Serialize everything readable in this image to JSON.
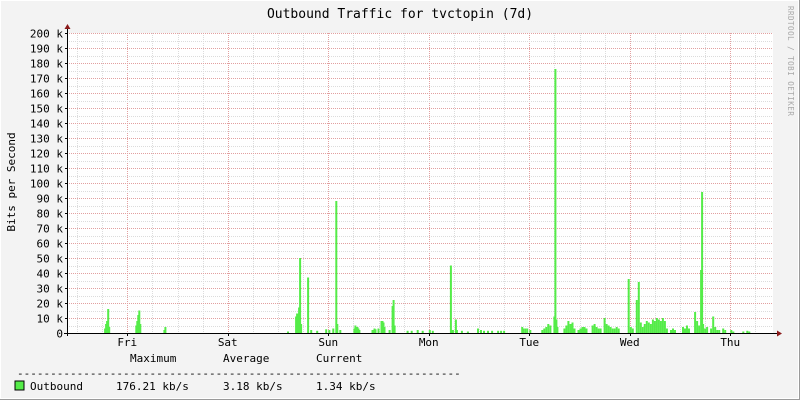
{
  "chart_data": {
    "type": "area",
    "title": "Outbound Traffic for tvctopin (7d)",
    "ylabel": "Bits per Second",
    "watermark": "RRDTOOL / TOBI OETIKER",
    "ylim": [
      0,
      200000
    ],
    "yticks": [
      {
        "v": 0,
        "label": "0"
      },
      {
        "v": 10000,
        "label": "10 k"
      },
      {
        "v": 20000,
        "label": "20 k"
      },
      {
        "v": 30000,
        "label": "30 k"
      },
      {
        "v": 40000,
        "label": "40 k"
      },
      {
        "v": 50000,
        "label": "50 k"
      },
      {
        "v": 60000,
        "label": "60 k"
      },
      {
        "v": 70000,
        "label": "70 k"
      },
      {
        "v": 80000,
        "label": "80 k"
      },
      {
        "v": 90000,
        "label": "90 k"
      },
      {
        "v": 100000,
        "label": "100 k"
      },
      {
        "v": 110000,
        "label": "110 k"
      },
      {
        "v": 120000,
        "label": "120 k"
      },
      {
        "v": 130000,
        "label": "130 k"
      },
      {
        "v": 140000,
        "label": "140 k"
      },
      {
        "v": 150000,
        "label": "150 k"
      },
      {
        "v": 160000,
        "label": "160 k"
      },
      {
        "v": 170000,
        "label": "170 k"
      },
      {
        "v": 180000,
        "label": "180 k"
      },
      {
        "v": 190000,
        "label": "190 k"
      },
      {
        "v": 200000,
        "label": "200 k"
      }
    ],
    "day_labels": [
      "Fri",
      "Sat",
      "Sun",
      "Mon",
      "Tue",
      "Wed",
      "Thu"
    ],
    "xlim_days": [
      0,
      7.0
    ],
    "series": [
      {
        "name": "Outbound",
        "color": "#54ec48",
        "points": [
          [
            0.27,
            3000
          ],
          [
            0.28,
            6000
          ],
          [
            0.29,
            8000
          ],
          [
            0.3,
            16000
          ],
          [
            0.31,
            4000
          ],
          [
            0.58,
            5000
          ],
          [
            0.59,
            8000
          ],
          [
            0.6,
            12000
          ],
          [
            0.61,
            15000
          ],
          [
            0.62,
            6000
          ],
          [
            0.86,
            2000
          ],
          [
            0.87,
            4000
          ],
          [
            2.09,
            1000
          ],
          [
            2.17,
            11000
          ],
          [
            2.18,
            13000
          ],
          [
            2.19,
            13000
          ],
          [
            2.2,
            17000
          ],
          [
            2.21,
            50000
          ],
          [
            2.22,
            6000
          ],
          [
            2.29,
            37000
          ],
          [
            2.32,
            2000
          ],
          [
            2.38,
            1500
          ],
          [
            2.47,
            2500
          ],
          [
            2.5,
            2000
          ],
          [
            2.54,
            3000
          ],
          [
            2.57,
            88000
          ],
          [
            2.58,
            6000
          ],
          [
            2.61,
            2000
          ],
          [
            2.75,
            3000
          ],
          [
            2.76,
            5000
          ],
          [
            2.77,
            4000
          ],
          [
            2.78,
            4000
          ],
          [
            2.79,
            3000
          ],
          [
            2.8,
            2000
          ],
          [
            2.93,
            2000
          ],
          [
            2.95,
            3000
          ],
          [
            2.96,
            2500
          ],
          [
            2.99,
            3000
          ],
          [
            3.02,
            8000
          ],
          [
            3.03,
            8000
          ],
          [
            3.04,
            7000
          ],
          [
            3.05,
            4000
          ],
          [
            3.1,
            2000
          ],
          [
            3.13,
            18000
          ],
          [
            3.14,
            22000
          ],
          [
            3.15,
            5000
          ],
          [
            3.28,
            1500
          ],
          [
            3.32,
            1500
          ],
          [
            3.38,
            2000
          ],
          [
            3.43,
            1500
          ],
          [
            3.5,
            2000
          ],
          [
            3.53,
            1500
          ],
          [
            3.71,
            45000
          ],
          [
            3.72,
            2000
          ],
          [
            3.73,
            2000
          ],
          [
            3.76,
            9000
          ],
          [
            3.77,
            2000
          ],
          [
            3.82,
            1500
          ],
          [
            3.88,
            1000
          ],
          [
            3.98,
            3000
          ],
          [
            4.01,
            2000
          ],
          [
            4.04,
            1500
          ],
          [
            4.08,
            1500
          ],
          [
            4.12,
            1500
          ],
          [
            4.18,
            1500
          ],
          [
            4.21,
            1500
          ],
          [
            4.24,
            1500
          ],
          [
            4.42,
            4000
          ],
          [
            4.43,
            3000
          ],
          [
            4.45,
            3000
          ],
          [
            4.47,
            3000
          ],
          [
            4.5,
            2000
          ],
          [
            4.62,
            2000
          ],
          [
            4.64,
            3000
          ],
          [
            4.66,
            4000
          ],
          [
            4.68,
            6000
          ],
          [
            4.7,
            5000
          ],
          [
            4.74,
            11000
          ],
          [
            4.75,
            176000
          ],
          [
            4.76,
            9000
          ],
          [
            4.77,
            4000
          ],
          [
            4.84,
            3000
          ],
          [
            4.86,
            5000
          ],
          [
            4.88,
            8000
          ],
          [
            4.9,
            6000
          ],
          [
            4.92,
            7000
          ],
          [
            4.94,
            3000
          ],
          [
            4.98,
            2000
          ],
          [
            5.0,
            3000
          ],
          [
            5.02,
            4000
          ],
          [
            5.04,
            4000
          ],
          [
            5.06,
            3000
          ],
          [
            5.12,
            5000
          ],
          [
            5.14,
            6000
          ],
          [
            5.16,
            4000
          ],
          [
            5.18,
            3000
          ],
          [
            5.2,
            3000
          ],
          [
            5.24,
            10000
          ],
          [
            5.26,
            6000
          ],
          [
            5.28,
            5000
          ],
          [
            5.3,
            4000
          ],
          [
            5.32,
            3000
          ],
          [
            5.34,
            3000
          ],
          [
            5.36,
            4000
          ],
          [
            5.38,
            3000
          ],
          [
            5.48,
            36000
          ],
          [
            5.5,
            4000
          ],
          [
            5.52,
            3000
          ],
          [
            5.56,
            22000
          ],
          [
            5.58,
            34000
          ],
          [
            5.6,
            7000
          ],
          [
            5.62,
            4000
          ],
          [
            5.64,
            6000
          ],
          [
            5.66,
            8000
          ],
          [
            5.68,
            7000
          ],
          [
            5.7,
            6000
          ],
          [
            5.72,
            9000
          ],
          [
            5.74,
            8000
          ],
          [
            5.76,
            10000
          ],
          [
            5.78,
            9000
          ],
          [
            5.8,
            8000
          ],
          [
            5.82,
            10000
          ],
          [
            5.84,
            8000
          ],
          [
            5.86,
            3000
          ],
          [
            5.9,
            2000
          ],
          [
            5.92,
            3000
          ],
          [
            5.94,
            2000
          ],
          [
            6.02,
            4000
          ],
          [
            6.04,
            3000
          ],
          [
            6.06,
            5000
          ],
          [
            6.08,
            3000
          ],
          [
            6.14,
            14000
          ],
          [
            6.16,
            8000
          ],
          [
            6.18,
            5000
          ],
          [
            6.2,
            42000
          ],
          [
            6.21,
            94000
          ],
          [
            6.22,
            6000
          ],
          [
            6.24,
            3000
          ],
          [
            6.26,
            4000
          ],
          [
            6.3,
            3000
          ],
          [
            6.32,
            11000
          ],
          [
            6.34,
            4000
          ],
          [
            6.36,
            2000
          ],
          [
            6.38,
            2000
          ],
          [
            6.42,
            3000
          ],
          [
            6.44,
            2000
          ],
          [
            6.5,
            2000
          ],
          [
            6.52,
            1000
          ],
          [
            6.62,
            1000
          ],
          [
            6.66,
            1500
          ],
          [
            6.68,
            1000
          ]
        ]
      }
    ],
    "legend": {
      "headers": [
        "Maximum",
        "Average",
        "Current"
      ],
      "dashes": "-------------------------------------------------------------------",
      "rows": [
        {
          "name": "Outbound",
          "color": "#54ec48",
          "maximum": "176.21 kb/s",
          "average": "3.18 kb/s",
          "current": "1.34 kb/s"
        }
      ]
    }
  }
}
